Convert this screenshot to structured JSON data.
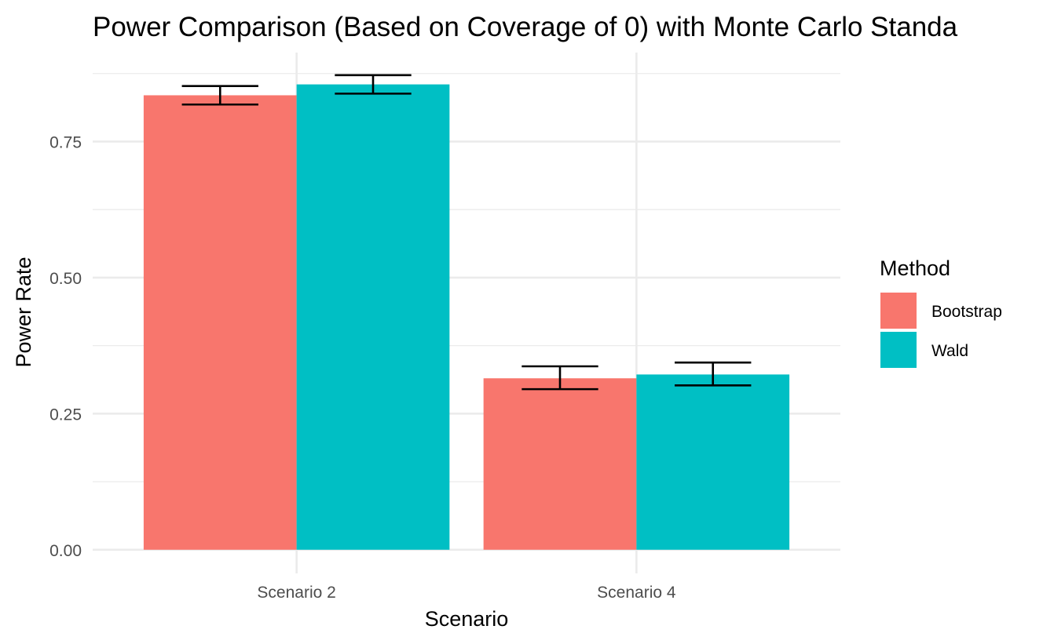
{
  "chart_data": {
    "type": "bar",
    "title": "Power Comparison (Based on Coverage of 0) with Monte Carlo Standa",
    "xlabel": "Scenario",
    "ylabel": "Power Rate",
    "categories": [
      "Scenario 2",
      "Scenario 4"
    ],
    "series": [
      {
        "name": "Bootstrap",
        "color": "#F8766D",
        "values": [
          0.835,
          0.315
        ],
        "error_low": [
          0.818,
          0.295
        ],
        "error_high": [
          0.852,
          0.337
        ]
      },
      {
        "name": "Wald",
        "color": "#00BFC4",
        "values": [
          0.855,
          0.322
        ],
        "error_low": [
          0.838,
          0.302
        ],
        "error_high": [
          0.872,
          0.344
        ]
      }
    ],
    "yticks": [
      0.0,
      0.25,
      0.5,
      0.75
    ],
    "ytick_labels": [
      "0.00",
      "0.25",
      "0.50",
      "0.75"
    ],
    "ylim": [
      -0.0435,
      0.9135
    ],
    "grid": true,
    "legend": {
      "title": "Method",
      "position": "right",
      "items": [
        "Bootstrap",
        "Wald"
      ]
    }
  }
}
